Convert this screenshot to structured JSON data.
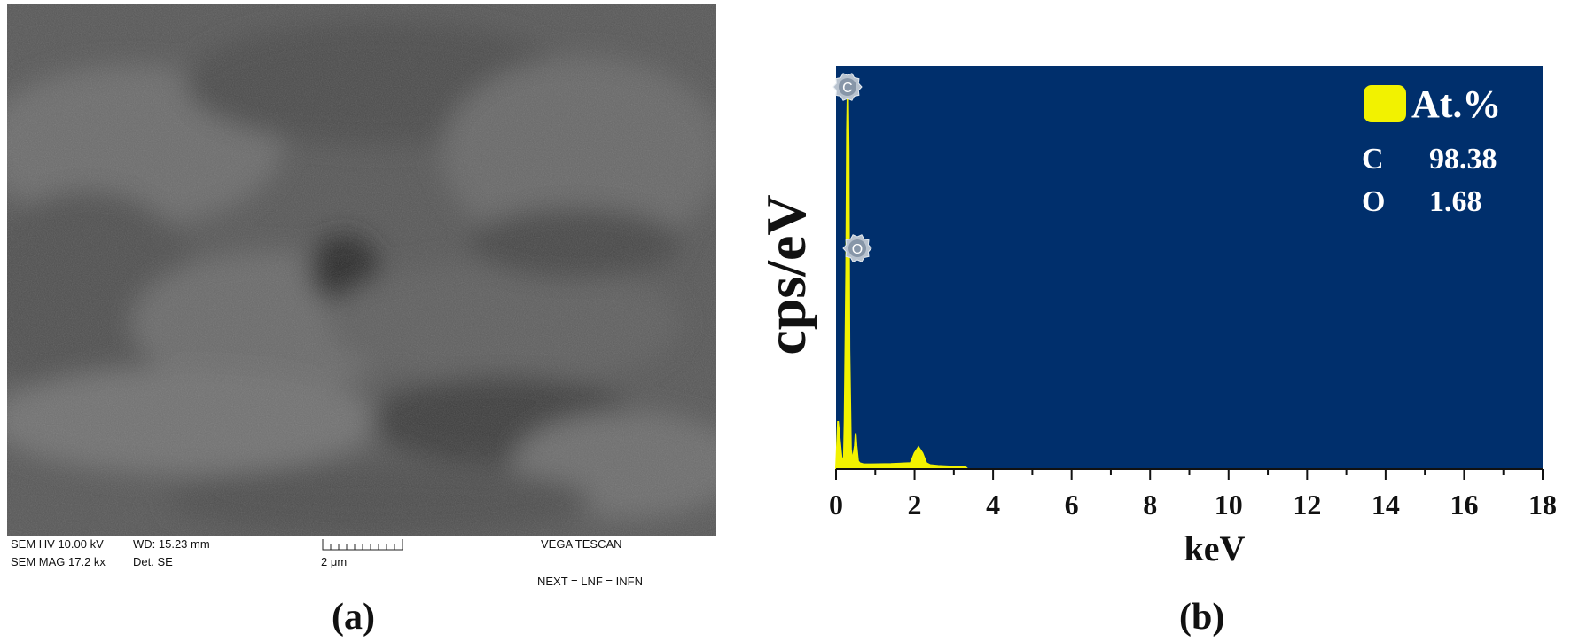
{
  "panel_a": {
    "label": "(a)",
    "meta": {
      "hv": "SEM HV  10.00 kV",
      "wd": "WD: 15.23 mm",
      "mag": "SEM MAG  17.2 kx",
      "det": "Det. SE",
      "scale_bar": "2 μm",
      "instrument": "VEGA   TESCAN",
      "footer": "NEXT = LNF = INFN"
    }
  },
  "panel_b": {
    "label": "(b)"
  },
  "chart_data": {
    "type": "line",
    "xlabel": "keV",
    "ylabel": "cps/eV",
    "xlim": [
      0,
      18
    ],
    "ylim": [
      0,
      1
    ],
    "xticks": [
      0,
      2,
      4,
      6,
      8,
      10,
      12,
      14,
      16,
      18
    ],
    "grid": false,
    "background_color": "#002f6c",
    "series_color": "#f2f200",
    "series": [
      {
        "x": [
          0.0,
          0.05,
          0.1,
          0.15,
          0.2,
          0.22,
          0.26,
          0.28,
          0.3,
          0.32,
          0.34,
          0.38,
          0.42,
          0.48,
          0.5,
          0.52,
          0.56,
          0.6,
          0.7,
          0.9,
          1.4,
          1.9,
          2.0,
          2.1,
          2.2,
          2.3,
          2.4,
          2.6,
          3.0,
          3.3,
          3.35
        ],
        "y": [
          0.0,
          0.12,
          0.07,
          0.02,
          0.03,
          0.12,
          0.5,
          0.85,
          0.98,
          0.8,
          0.3,
          0.05,
          0.02,
          0.06,
          0.09,
          0.06,
          0.02,
          0.015,
          0.012,
          0.012,
          0.013,
          0.015,
          0.04,
          0.055,
          0.04,
          0.015,
          0.01,
          0.008,
          0.006,
          0.005,
          0.0
        ]
      }
    ],
    "peaks": [
      {
        "element": "C",
        "energy": 0.27
      },
      {
        "element": "O",
        "energy": 0.52
      }
    ],
    "legend": {
      "title": "At.%",
      "position": "top-right",
      "entries": [
        {
          "element": "C",
          "value": "98.38"
        },
        {
          "element": "O",
          "value": "1.68"
        }
      ]
    }
  }
}
